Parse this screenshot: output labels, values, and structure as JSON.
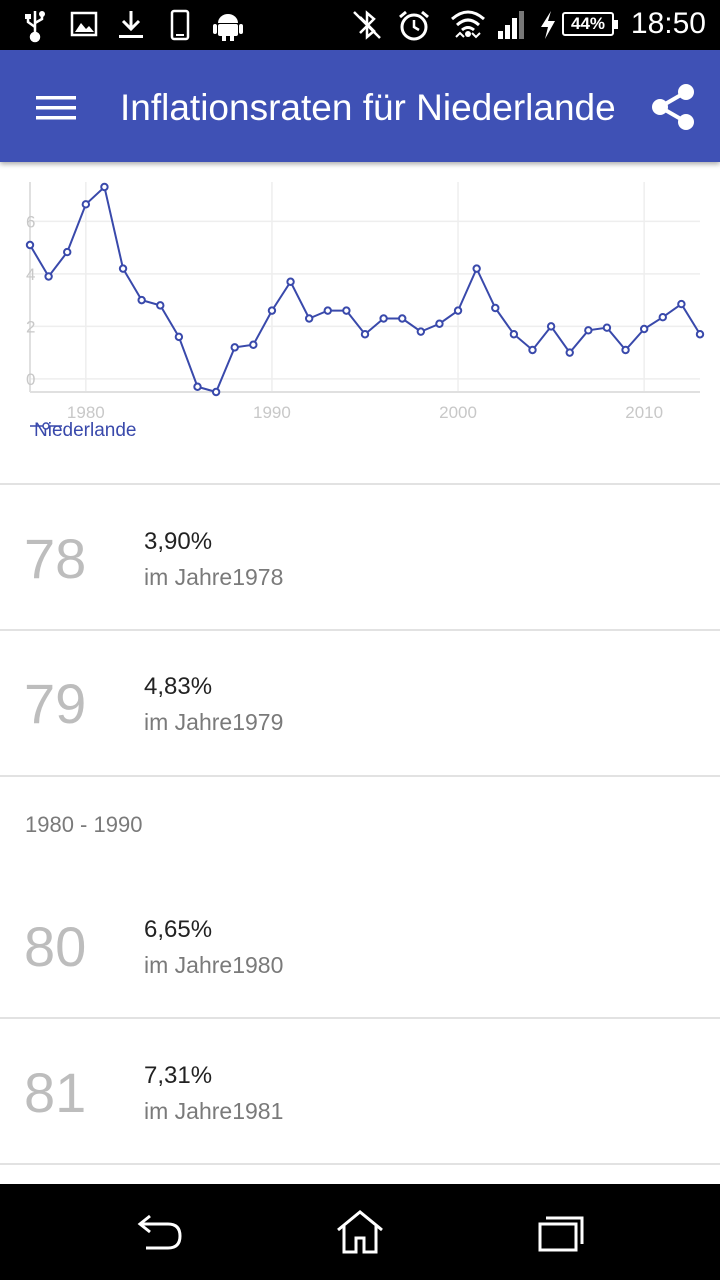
{
  "status_bar": {
    "time": "18:50",
    "battery": "44%",
    "icons": [
      "usb-icon",
      "image-icon",
      "download-icon",
      "phone-icon",
      "android-icon",
      "bluetooth-off-icon",
      "alarm-icon",
      "wifi-icon",
      "signal-icon",
      "charging-icon"
    ]
  },
  "app_bar": {
    "title": "Inflationsraten für Niederlande",
    "icons": [
      "menu-icon",
      "share-icon"
    ]
  },
  "chart_data": {
    "type": "line",
    "x": [
      1977,
      1978,
      1979,
      1980,
      1981,
      1982,
      1983,
      1984,
      1985,
      1986,
      1987,
      1988,
      1989,
      1990,
      1991,
      1992,
      1993,
      1994,
      1995,
      1996,
      1997,
      1998,
      1999,
      2000,
      2001,
      2002,
      2003,
      2004,
      2005,
      2006,
      2007,
      2008,
      2009,
      2010,
      2011,
      2012,
      2013
    ],
    "series": [
      {
        "name": "Niederlande",
        "values": [
          5.1,
          3.9,
          4.83,
          6.65,
          7.31,
          4.2,
          3.0,
          2.8,
          1.6,
          -0.3,
          -0.5,
          1.2,
          1.3,
          2.6,
          3.7,
          2.3,
          2.6,
          2.6,
          1.7,
          2.3,
          2.3,
          1.8,
          2.1,
          2.6,
          4.2,
          2.7,
          1.7,
          1.1,
          2.0,
          1.0,
          1.85,
          1.95,
          1.1,
          1.9,
          2.35,
          2.85,
          1.7
        ]
      }
    ],
    "x_ticks": [
      1980,
      1990,
      2000,
      2010
    ],
    "y_ticks": [
      0,
      2,
      4,
      6
    ],
    "xlim": [
      1977,
      2013
    ],
    "ylim": [
      -0.5,
      7.5
    ],
    "grid": true,
    "legend": "bottom-left",
    "color": "#3949ab"
  },
  "list": {
    "rows": [
      {
        "number": "78",
        "value": "3,90%",
        "year": "im Jahre1978"
      },
      {
        "number": "79",
        "value": "4,83%",
        "year": "im Jahre1979"
      },
      {
        "number": "80",
        "value": "6,65%",
        "year": "im Jahre1980"
      },
      {
        "number": "81",
        "value": "7,31%",
        "year": "im Jahre1981"
      }
    ],
    "section_header": "1980 - 1990"
  },
  "nav_bar": {
    "icons": [
      "back-icon",
      "home-icon",
      "recent-apps-icon"
    ]
  },
  "colors": {
    "primary": "#3f51b5",
    "line": "#3949ab",
    "list_number": "#bdbdbd"
  }
}
